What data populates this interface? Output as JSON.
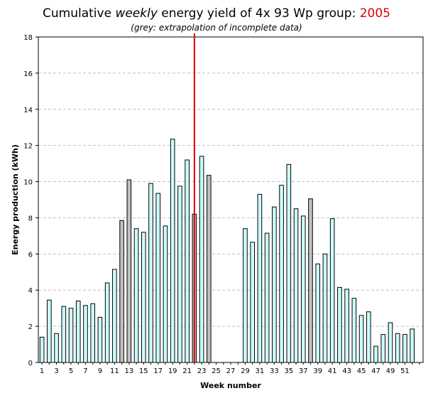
{
  "title": {
    "prefix": "Cumulative ",
    "emphasis": "weekly",
    "middle": " energy yield of 4x 93 Wp group: ",
    "year": "2005"
  },
  "subtitle": "(grey: extrapolation of incomplete data)",
  "colors": {
    "measured_bar": "#ccffff",
    "extrapolated_bar": "#c0c0c0",
    "bar_outline": "#000000",
    "marker_line": "#e00000",
    "grid": "#c0c0c0",
    "accent": "#e00000"
  },
  "chart_data": {
    "type": "bar",
    "xlabel": "Week number",
    "ylabel": "Energy production (kWh)",
    "ylim": [
      0,
      18
    ],
    "yticks": [
      0,
      2,
      4,
      6,
      8,
      10,
      12,
      14,
      16,
      18
    ],
    "xticks": [
      1,
      3,
      5,
      7,
      9,
      11,
      13,
      15,
      17,
      19,
      21,
      23,
      25,
      27,
      29,
      31,
      33,
      35,
      37,
      39,
      41,
      43,
      45,
      47,
      49,
      51
    ],
    "grid": true,
    "marker_week": 22,
    "weeks": [
      1,
      2,
      3,
      4,
      5,
      6,
      7,
      8,
      9,
      10,
      11,
      12,
      13,
      14,
      15,
      16,
      17,
      18,
      19,
      20,
      21,
      22,
      23,
      24,
      25,
      26,
      27,
      28,
      29,
      30,
      31,
      32,
      33,
      34,
      35,
      36,
      37,
      38,
      39,
      40,
      41,
      42,
      43,
      44,
      45,
      46,
      47,
      48,
      49,
      50,
      51,
      52,
      53
    ],
    "values": [
      1.4,
      3.45,
      1.6,
      3.1,
      3.0,
      3.4,
      3.15,
      3.25,
      2.5,
      4.4,
      5.15,
      7.85,
      10.1,
      7.4,
      7.2,
      9.9,
      9.35,
      7.55,
      12.35,
      9.75,
      11.2,
      8.2,
      11.4,
      10.35,
      0,
      0,
      0,
      0,
      7.4,
      6.65,
      9.3,
      7.15,
      8.6,
      9.8,
      10.95,
      8.5,
      8.1,
      9.05,
      5.45,
      6.0,
      7.95,
      4.15,
      4.05,
      3.55,
      2.6,
      2.8,
      0.9,
      1.55,
      2.2,
      1.6,
      1.55,
      1.85,
      0
    ],
    "extrapolated_weeks": [
      12,
      13,
      22,
      24,
      38
    ]
  }
}
